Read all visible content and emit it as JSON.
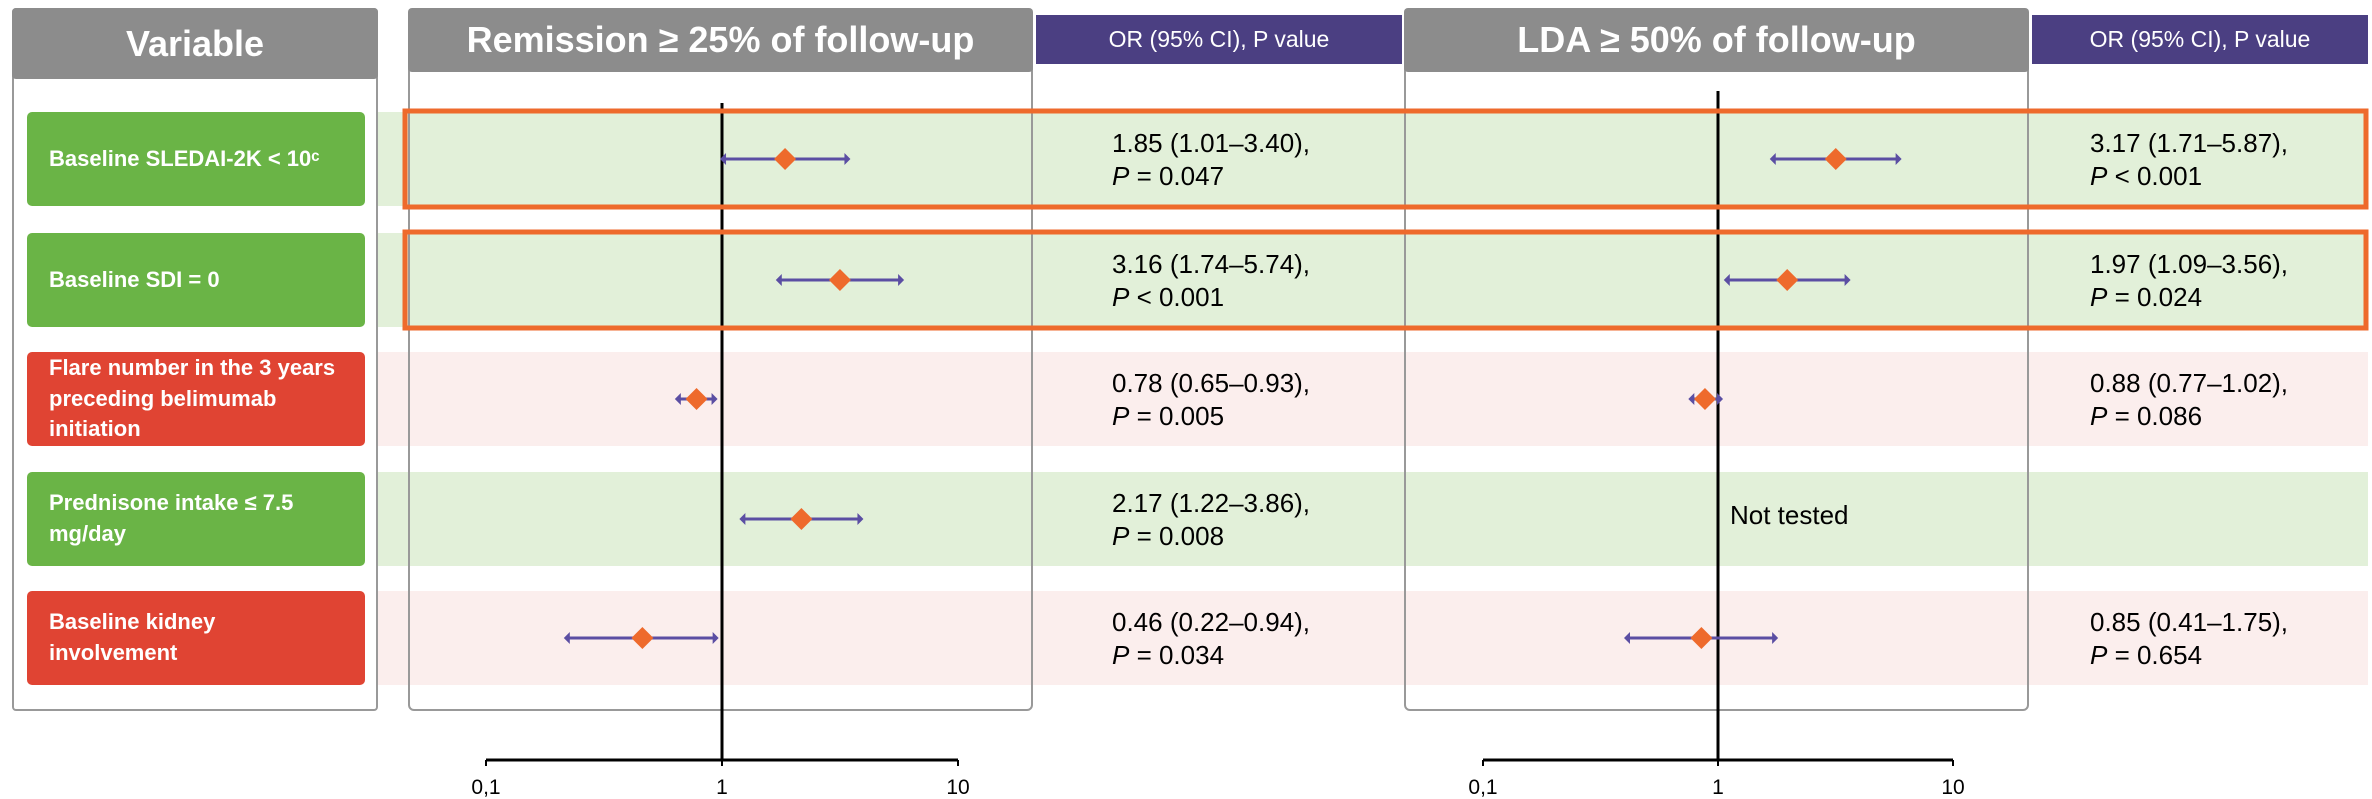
{
  "chart_data": {
    "type": "forest",
    "category_header": "Variable",
    "categories": [
      "Baseline SLEDAI-2K < 10ᶜ",
      "Baseline SDI = 0",
      "Flare number in the 3 years preceding belimumab initiation",
      "Prednisone intake ≤ 7.5 mg/day",
      "Baseline kidney involvement"
    ],
    "category_colors": [
      "#6ab446",
      "#6ab446",
      "#e04433",
      "#6ab446",
      "#e04433"
    ],
    "band_colors": [
      "#e2f0d9",
      "#e2f0d9",
      "#fbeeed",
      "#e2f0d9",
      "#fbeeed"
    ],
    "marker_color": "#ee6a2c",
    "ci_color": "#5b4ea3",
    "xscale": "log",
    "xlim": [
      0.1,
      10
    ],
    "xticks": [
      {
        "value": 0.1,
        "label": "0,1"
      },
      1,
      10
    ],
    "panels": [
      {
        "title": "Remission ≥ 25% of follow-up",
        "stat_header": "OR (95% CI), P value",
        "values": [
          1.85,
          3.16,
          0.78,
          2.17,
          0.46
        ],
        "lower": [
          1.01,
          1.74,
          0.65,
          1.22,
          0.22
        ],
        "upper": [
          3.4,
          5.74,
          0.93,
          3.86,
          0.94
        ],
        "value_labels": [
          "1.85 (1.01–3.40),",
          "3.16 (1.74–5.74),",
          "0.78 (0.65–0.93),",
          "2.17 (1.22–3.86),",
          "0.46 (0.22–0.94),"
        ],
        "p_labels": [
          "P = 0.047",
          "P < 0.001",
          "P = 0.005",
          "P = 0.008",
          "P = 0.034"
        ]
      },
      {
        "title": "LDA ≥ 50% of follow-up",
        "stat_header": "OR (95% CI), P value",
        "values": [
          3.17,
          1.97,
          0.88,
          null,
          0.85
        ],
        "lower": [
          1.71,
          1.09,
          0.77,
          null,
          0.41
        ],
        "upper": [
          5.87,
          3.56,
          1.02,
          null,
          1.75
        ],
        "value_labels": [
          "3.17 (1.71–5.87),",
          "1.97 (1.09–3.56),",
          "0.88 (0.77–1.02),",
          null,
          "0.85 (0.41–1.75),"
        ],
        "p_labels": [
          "P < 0.001",
          "P = 0.024",
          "P = 0.086",
          null,
          "P = 0.654"
        ],
        "annotation": "Not tested"
      }
    ]
  }
}
